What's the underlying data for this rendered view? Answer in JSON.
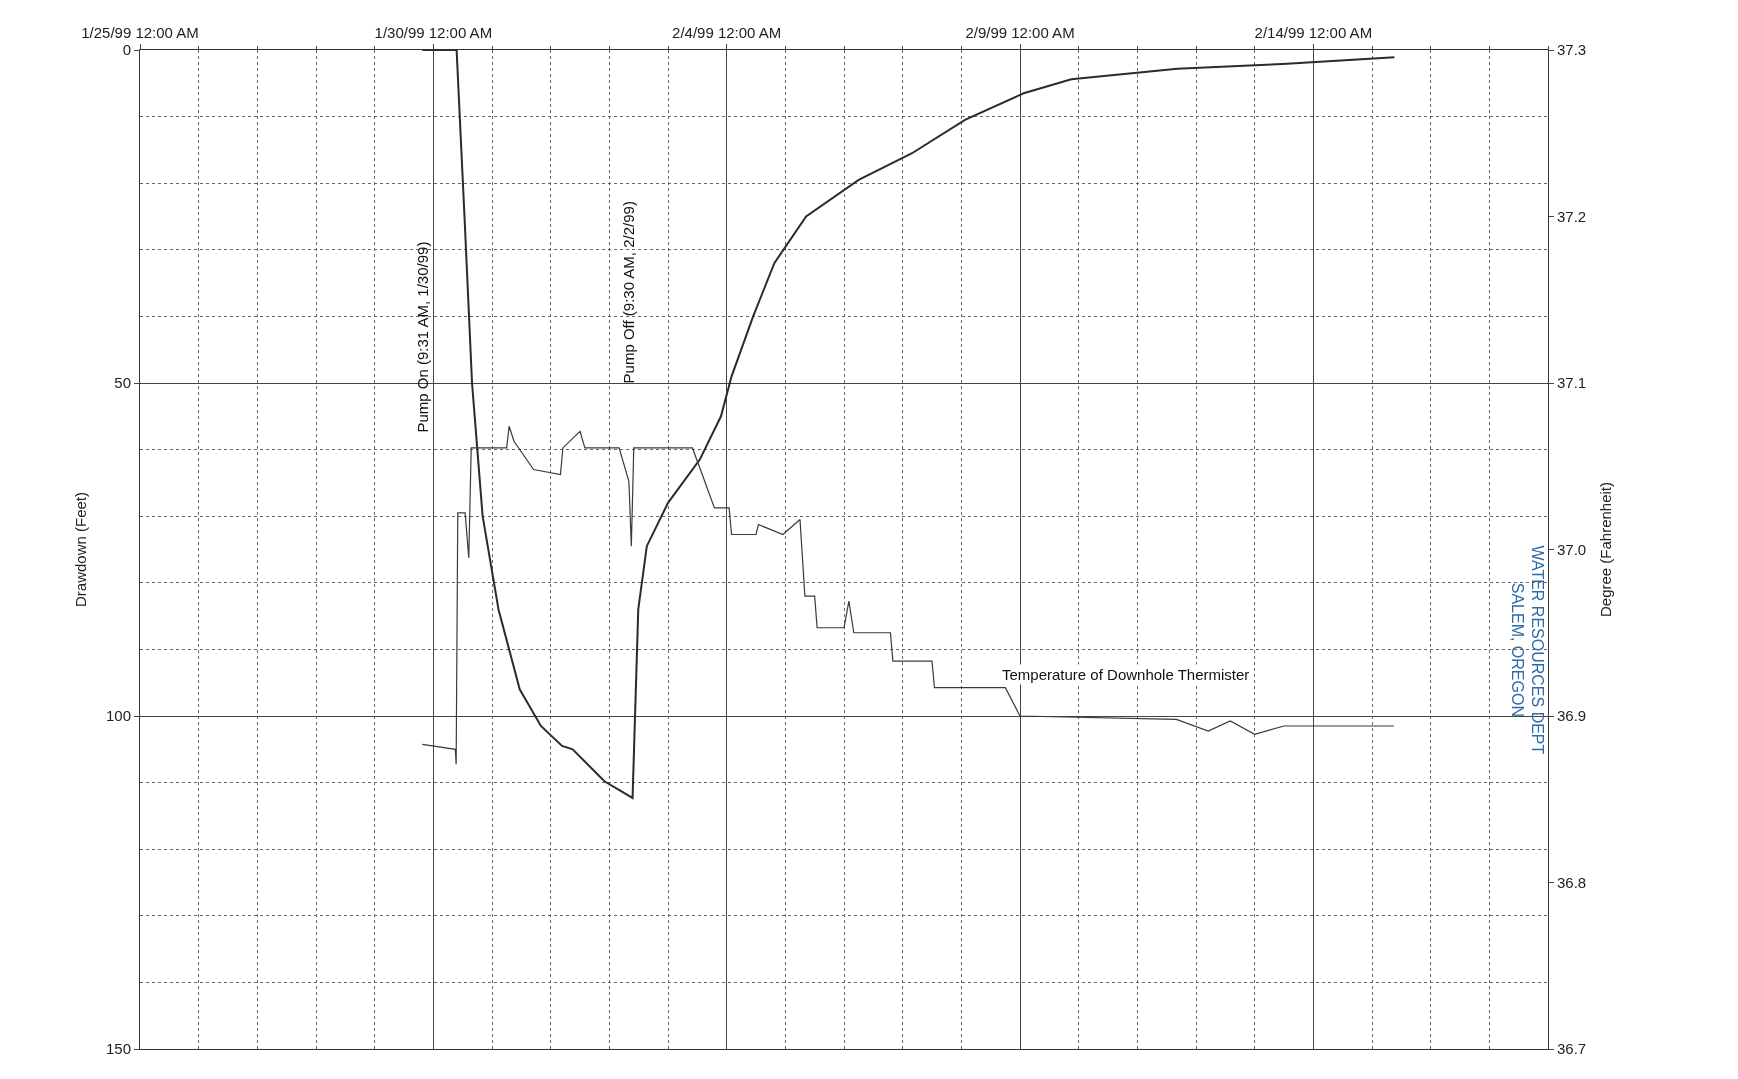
{
  "chart_data": {
    "type": "line",
    "ylabel": "Drawdown (Feet)",
    "y2label": "Degree (Fahrenheit)",
    "xlim": [
      "1999-01-25",
      "1999-02-18"
    ],
    "xticks": [
      {
        "value": "1999-01-25",
        "label": "1/25/99 12:00 AM"
      },
      {
        "value": "1999-01-30",
        "label": "1/30/99 12:00 AM"
      },
      {
        "value": "1999-02-04",
        "label": "2/4/99 12:00 AM"
      },
      {
        "value": "1999-02-09",
        "label": "2/9/99 12:00 AM"
      },
      {
        "value": "1999-02-14",
        "label": "2/14/99 12:00 AM"
      }
    ],
    "ylim": [
      150,
      0
    ],
    "yticks": [
      0,
      50,
      100,
      150
    ],
    "y2lim": [
      36.7,
      37.3
    ],
    "y2ticks": [
      {
        "value": 36.7,
        "label": "36.7"
      },
      {
        "value": 36.8,
        "label": "36.8"
      },
      {
        "value": 36.9,
        "label": "36.9"
      },
      {
        "value": 37.0,
        "label": "37.0"
      },
      {
        "value": 37.1,
        "label": "37.1"
      },
      {
        "value": 37.2,
        "label": "37.2"
      },
      {
        "value": 37.3,
        "label": "37.3"
      }
    ],
    "grid": true,
    "marker": "none",
    "line_style": "solid",
    "series": [
      {
        "color": "#2b2b2b",
        "x": [
          "1999-01-29T19:30",
          "1999-01-30T09:31",
          "1999-01-30T12:45",
          "1999-01-30T15:50",
          "1999-01-30T20:10",
          "1999-01-31T02:40",
          "1999-01-31T11:20",
          "1999-01-31T20:00",
          "1999-02-01T04:40",
          "1999-02-01T09:00",
          "1999-02-01T22:00",
          "1999-02-02T09:30",
          "1999-02-02T11:50",
          "1999-02-02T15:20",
          "1999-02-03T00:00",
          "1999-02-03T13:00",
          "1999-02-03T21:40",
          "1999-02-04T02:00",
          "1999-02-04T10:50",
          "1999-02-04T19:30",
          "1999-02-05T08:30",
          "1999-02-06T06:00",
          "1999-02-07T03:50",
          "1999-02-08T01:30",
          "1999-02-09T01:30",
          "1999-02-09T21:00",
          "1999-02-11T16:20",
          "1999-02-13T11:30",
          "1999-02-15T09:10"
        ],
        "values": [
          0,
          0,
          25,
          50,
          70,
          84,
          96,
          101.5,
          104.5,
          105,
          109.8,
          112.3,
          84,
          74.5,
          68,
          61.5,
          55,
          49,
          40,
          32,
          25,
          19.5,
          15.5,
          10.5,
          6.5,
          4.4,
          2.8,
          2.1,
          1.1
        ]
      },
      {
        "color": "#3a3a3a",
        "axis": "y2",
        "x": [
          "1999-01-29T19:30",
          "1999-01-30T09:00",
          "1999-01-30T09:20",
          "1999-01-30T10:00",
          "1999-01-30T13:00",
          "1999-01-30T14:30",
          "1999-01-30T15:30",
          "1999-01-30T21:00",
          "1999-01-31T06:00",
          "1999-01-31T07:00",
          "1999-01-31T09:00",
          "1999-01-31T17:00",
          "1999-02-01T04:00",
          "1999-02-01T05:00",
          "1999-02-01T12:00",
          "1999-02-01T14:00",
          "1999-02-02T04:00",
          "1999-02-02T08:00",
          "1999-02-02T09:00",
          "1999-02-02T10:00",
          "1999-02-03T10:00",
          "1999-02-03T14:00",
          "1999-02-03T19:00",
          "1999-02-04T01:00",
          "1999-02-04T02:00",
          "1999-02-04T12:00",
          "1999-02-04T13:00",
          "1999-02-04T23:00",
          "1999-02-05T06:00",
          "1999-02-05T08:00",
          "1999-02-05T12:00",
          "1999-02-05T13:00",
          "1999-02-06T00:00",
          "1999-02-06T02:00",
          "1999-02-06T04:00",
          "1999-02-06T19:00",
          "1999-02-06T20:00",
          "1999-02-07T12:00",
          "1999-02-07T13:00",
          "1999-02-08T18:00",
          "1999-02-09T00:00",
          "1999-02-11T16:00",
          "1999-02-12T05:00",
          "1999-02-12T14:00",
          "1999-02-13T00:00",
          "1999-02-13T12:00",
          "1999-02-13T19:00",
          "1999-02-15T09:00"
        ],
        "values": [
          36.883,
          36.88,
          36.871,
          37.022,
          37.022,
          36.995,
          37.061,
          37.061,
          37.061,
          37.074,
          37.065,
          37.048,
          37.045,
          37.061,
          37.071,
          37.061,
          37.061,
          37.041,
          37.002,
          37.061,
          37.061,
          37.045,
          37.025,
          37.025,
          37.009,
          37.009,
          37.015,
          37.009,
          37.018,
          36.972,
          36.972,
          36.953,
          36.953,
          36.969,
          36.95,
          36.95,
          36.933,
          36.933,
          36.917,
          36.917,
          36.9,
          36.898,
          36.891,
          36.897,
          36.889,
          36.894,
          36.894,
          36.894
        ]
      }
    ],
    "annotations": [
      "Pump On (9:31 AM, 1/30/99)",
      "Pump Off (9:30 AM, 2/2/99)",
      "Temperature of Downhole Thermister",
      "WATER RESOURCES DEPT\nSALEM, OREGON"
    ]
  }
}
